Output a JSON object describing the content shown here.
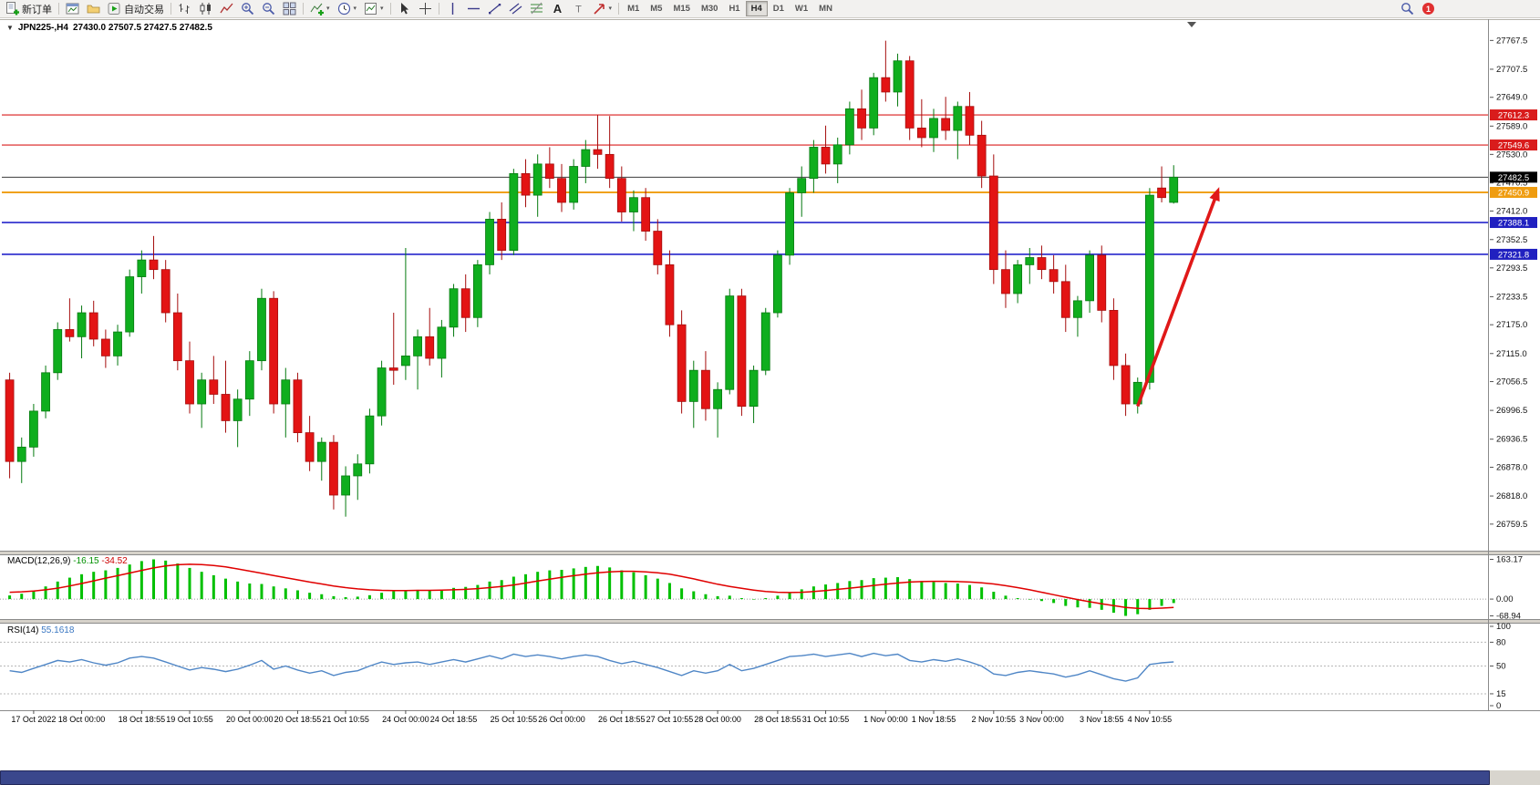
{
  "colors": {
    "up": "#0fae1e",
    "up_dark": "#067a10",
    "down": "#e31414",
    "down_dark": "#a50d0d",
    "macd_hist": "#00c000",
    "macd_signal": "#e00000",
    "rsi_line": "#4f86c6",
    "line_red": "#d91c1c",
    "line_blue": "#2626cc",
    "line_orange": "#f0a11c",
    "scrollbar": "#3a478c",
    "notification": "#e03030"
  },
  "toolbar": {
    "new_order_label": "新订单",
    "autotrading_label": "自动交易",
    "timeframes": [
      "M1",
      "M5",
      "M15",
      "M30",
      "H1",
      "H4",
      "D1",
      "W1",
      "MN"
    ],
    "active_timeframe": "H4",
    "notification_count": "1"
  },
  "chart": {
    "symbol_period": "JPN225-,H4",
    "ohlc": "27430.0 27507.5 27427.5 27482.5"
  },
  "indicators": {
    "macd": {
      "name": "MACD(12,26,9)",
      "value_main": "-16.15",
      "value_signal": "-34.52"
    },
    "rsi": {
      "name": "RSI(14)",
      "value": "55.1618"
    }
  },
  "chart_data": {
    "type": "candlestick",
    "symbol": "JPN225-",
    "timeframe": "H4",
    "current_bar": {
      "open": 27430.0,
      "high": 27507.5,
      "low": 27427.5,
      "close": 27482.5
    },
    "y_range": [
      26706,
      27810
    ],
    "y_ticks": [
      27767.5,
      27707.5,
      27649.0,
      27589.0,
      27530.0,
      27470.5,
      27412.0,
      27352.5,
      27293.5,
      27233.5,
      27175.0,
      27115.0,
      27056.5,
      26996.5,
      26936.5,
      26878.0,
      26818.0,
      26759.5
    ],
    "hlines": [
      {
        "price": 27612.3,
        "color": "#d91c1c",
        "width": 1.2,
        "label": "27612.3",
        "tag": "#d91c1c"
      },
      {
        "price": 27549.6,
        "color": "#d91c1c",
        "width": 1.2,
        "label": "27549.6",
        "tag": "#d91c1c"
      },
      {
        "price": 27482.5,
        "color": "#3c3c3c",
        "width": 1,
        "label": "27482.5",
        "tag": "#000000"
      },
      {
        "price": 27450.9,
        "color": "#f0a11c",
        "width": 2,
        "label": "27450.9",
        "tag": "#ef9c10"
      },
      {
        "price": 27388.1,
        "color": "#2626cc",
        "width": 1.6,
        "label": "27388.1",
        "tag": "#2020c0"
      },
      {
        "price": 27321.8,
        "color": "#2626cc",
        "width": 1.6,
        "label": "27321.8",
        "tag": "#2020c0"
      }
    ],
    "candles": [
      [
        27060,
        27075,
        26855,
        26890
      ],
      [
        26890,
        26940,
        26845,
        26920
      ],
      [
        26920,
        27010,
        26900,
        26995
      ],
      [
        26995,
        27090,
        26980,
        27075
      ],
      [
        27075,
        27180,
        27060,
        27165
      ],
      [
        27165,
        27230,
        27140,
        27150
      ],
      [
        27150,
        27215,
        27105,
        27200
      ],
      [
        27200,
        27225,
        27130,
        27145
      ],
      [
        27145,
        27165,
        27085,
        27110
      ],
      [
        27110,
        27175,
        27090,
        27160
      ],
      [
        27160,
        27290,
        27150,
        27275
      ],
      [
        27275,
        27330,
        27240,
        27310
      ],
      [
        27310,
        27360,
        27270,
        27290
      ],
      [
        27290,
        27310,
        27180,
        27200
      ],
      [
        27200,
        27240,
        27080,
        27100
      ],
      [
        27100,
        27140,
        26990,
        27010
      ],
      [
        27010,
        27075,
        26960,
        27060
      ],
      [
        27060,
        27110,
        27010,
        27030
      ],
      [
        27030,
        27100,
        26950,
        26975
      ],
      [
        26975,
        27040,
        26920,
        27020
      ],
      [
        27020,
        27120,
        26985,
        27100
      ],
      [
        27100,
        27250,
        27080,
        27230
      ],
      [
        27230,
        27245,
        26990,
        27010
      ],
      [
        27010,
        27085,
        26940,
        27060
      ],
      [
        27060,
        27075,
        26930,
        26950
      ],
      [
        26950,
        26985,
        26870,
        26890
      ],
      [
        26890,
        26940,
        26850,
        26930
      ],
      [
        26930,
        26945,
        26790,
        26820
      ],
      [
        26820,
        26880,
        26775,
        26860
      ],
      [
        26860,
        26905,
        26810,
        26885
      ],
      [
        26885,
        27000,
        26865,
        26985
      ],
      [
        26985,
        27100,
        26965,
        27085
      ],
      [
        27085,
        27200,
        27050,
        27080
      ],
      [
        27090,
        27335,
        27060,
        27110
      ],
      [
        27110,
        27165,
        27040,
        27150
      ],
      [
        27150,
        27210,
        27090,
        27105
      ],
      [
        27105,
        27185,
        27065,
        27170
      ],
      [
        27170,
        27260,
        27150,
        27250
      ],
      [
        27250,
        27280,
        27160,
        27190
      ],
      [
        27190,
        27310,
        27170,
        27300
      ],
      [
        27300,
        27410,
        27280,
        27395
      ],
      [
        27395,
        27430,
        27310,
        27330
      ],
      [
        27330,
        27500,
        27320,
        27490
      ],
      [
        27490,
        27520,
        27420,
        27445
      ],
      [
        27445,
        27530,
        27400,
        27510
      ],
      [
        27510,
        27545,
        27460,
        27480
      ],
      [
        27480,
        27510,
        27410,
        27430
      ],
      [
        27430,
        27520,
        27415,
        27505
      ],
      [
        27505,
        27560,
        27470,
        27540
      ],
      [
        27540,
        27612,
        27500,
        27530
      ],
      [
        27530,
        27610,
        27460,
        27480
      ],
      [
        27480,
        27505,
        27390,
        27410
      ],
      [
        27410,
        27455,
        27370,
        27440
      ],
      [
        27440,
        27460,
        27350,
        27370
      ],
      [
        27370,
        27395,
        27280,
        27300
      ],
      [
        27300,
        27330,
        27150,
        27175
      ],
      [
        27175,
        27205,
        26990,
        27015
      ],
      [
        27015,
        27100,
        26960,
        27080
      ],
      [
        27080,
        27120,
        26975,
        27000
      ],
      [
        27000,
        27055,
        26940,
        27040
      ],
      [
        27040,
        27250,
        27030,
        27235
      ],
      [
        27235,
        27250,
        26985,
        27005
      ],
      [
        27005,
        27090,
        26970,
        27080
      ],
      [
        27080,
        27210,
        27070,
        27200
      ],
      [
        27200,
        27330,
        27190,
        27320
      ],
      [
        27320,
        27460,
        27300,
        27450
      ],
      [
        27450,
        27505,
        27400,
        27480
      ],
      [
        27480,
        27560,
        27450,
        27545
      ],
      [
        27545,
        27590,
        27490,
        27510
      ],
      [
        27510,
        27565,
        27470,
        27550
      ],
      [
        27550,
        27640,
        27530,
        27625
      ],
      [
        27625,
        27665,
        27560,
        27585
      ],
      [
        27585,
        27700,
        27570,
        27690
      ],
      [
        27690,
        27767,
        27640,
        27660
      ],
      [
        27660,
        27740,
        27630,
        27725
      ],
      [
        27725,
        27735,
        27560,
        27585
      ],
      [
        27585,
        27645,
        27545,
        27565
      ],
      [
        27565,
        27625,
        27535,
        27605
      ],
      [
        27605,
        27650,
        27560,
        27580
      ],
      [
        27580,
        27640,
        27520,
        27630
      ],
      [
        27630,
        27660,
        27550,
        27570
      ],
      [
        27570,
        27600,
        27460,
        27485
      ],
      [
        27485,
        27530,
        27260,
        27290
      ],
      [
        27290,
        27330,
        27210,
        27240
      ],
      [
        27240,
        27310,
        27220,
        27300
      ],
      [
        27300,
        27335,
        27260,
        27315
      ],
      [
        27315,
        27340,
        27270,
        27290
      ],
      [
        27290,
        27320,
        27240,
        27265
      ],
      [
        27265,
        27300,
        27160,
        27190
      ],
      [
        27190,
        27235,
        27150,
        27225
      ],
      [
        27225,
        27330,
        27200,
        27320
      ],
      [
        27320,
        27340,
        27180,
        27205
      ],
      [
        27205,
        27230,
        27060,
        27090
      ],
      [
        27090,
        27115,
        26985,
        27010
      ],
      [
        27010,
        27065,
        26990,
        27055
      ],
      [
        27055,
        27460,
        27040,
        27445
      ],
      [
        27460,
        27505,
        27430,
        27440
      ],
      [
        27430,
        27507.5,
        27427.5,
        27482.5
      ]
    ],
    "x_labels": [
      {
        "i": 2,
        "t": "17 Oct 2022"
      },
      {
        "i": 6,
        "t": "18 Oct 00:00"
      },
      {
        "i": 11,
        "t": "18 Oct 18:55"
      },
      {
        "i": 15,
        "t": "19 Oct 10:55"
      },
      {
        "i": 20,
        "t": "20 Oct 00:00"
      },
      {
        "i": 24,
        "t": "20 Oct 18:55"
      },
      {
        "i": 28,
        "t": "21 Oct 10:55"
      },
      {
        "i": 33,
        "t": "24 Oct 00:00"
      },
      {
        "i": 37,
        "t": "24 Oct 18:55"
      },
      {
        "i": 42,
        "t": "25 Oct 10:55"
      },
      {
        "i": 46,
        "t": "26 Oct 00:00"
      },
      {
        "i": 51,
        "t": "26 Oct 18:55"
      },
      {
        "i": 55,
        "t": "27 Oct 10:55"
      },
      {
        "i": 59,
        "t": "28 Oct 00:00"
      },
      {
        "i": 64,
        "t": "28 Oct 18:55"
      },
      {
        "i": 68,
        "t": "31 Oct 10:55"
      },
      {
        "i": 73,
        "t": "1 Nov 00:00"
      },
      {
        "i": 77,
        "t": "1 Nov 18:55"
      },
      {
        "i": 82,
        "t": "2 Nov 10:55"
      },
      {
        "i": 86,
        "t": "3 Nov 00:00"
      },
      {
        "i": 91,
        "t": "3 Nov 18:55"
      },
      {
        "i": 95,
        "t": "4 Nov 10:55"
      }
    ],
    "arrow": {
      "from_bar": 94.0,
      "from_price": 27005,
      "to_bar": 100.8,
      "to_price": 27462,
      "color": "#e01818"
    },
    "macd": {
      "histogram": [
        15,
        22,
        35,
        52,
        72,
        88,
        102,
        112,
        118,
        128,
        142,
        156,
        163.17,
        158,
        146,
        128,
        112,
        98,
        84,
        72,
        64,
        62,
        52,
        44,
        36,
        26,
        20,
        12,
        8,
        10,
        16,
        26,
        32,
        36,
        38,
        36,
        38,
        46,
        50,
        58,
        72,
        78,
        92,
        102,
        112,
        118,
        120,
        126,
        132,
        136,
        130,
        118,
        110,
        98,
        84,
        66,
        44,
        32,
        20,
        12,
        14,
        4,
        -2,
        4,
        14,
        28,
        40,
        52,
        60,
        66,
        74,
        78,
        86,
        88,
        90,
        82,
        74,
        70,
        66,
        64,
        58,
        48,
        30,
        14,
        4,
        -2,
        -8,
        -16,
        -28,
        -34,
        -36,
        -44,
        -56,
        -68.94,
        -62,
        -44,
        -28,
        -16.15
      ],
      "signal": [
        28,
        30,
        33,
        38,
        45,
        54,
        64,
        75,
        86,
        96,
        107,
        118,
        128,
        136,
        141,
        143,
        142,
        138,
        132,
        124,
        115,
        106,
        97,
        88,
        79,
        70,
        62,
        54,
        47,
        42,
        38,
        36,
        35,
        35,
        36,
        36,
        37,
        38,
        40,
        43,
        47,
        52,
        58,
        66,
        74,
        82,
        89,
        96,
        102,
        108,
        112,
        114,
        114,
        112,
        108,
        102,
        93,
        83,
        72,
        61,
        52,
        44,
        37,
        31,
        28,
        27,
        28,
        31,
        35,
        40,
        45,
        50,
        56,
        61,
        66,
        70,
        72,
        73,
        73,
        72,
        70,
        67,
        62,
        55,
        47,
        38,
        28,
        18,
        8,
        -2,
        -11,
        -19,
        -27,
        -34,
        -38,
        -39,
        -37,
        -34.52
      ],
      "ticks": [
        {
          "v": 163.17,
          "t": "163.17"
        },
        {
          "v": 0,
          "t": "0.00"
        },
        {
          "v": -68.94,
          "t": "-68.94"
        }
      ],
      "range": [
        -82,
        180
      ]
    },
    "rsi": {
      "values": [
        44,
        42,
        47,
        52,
        57,
        55,
        58,
        54,
        51,
        54,
        60,
        62,
        60,
        55,
        50,
        45,
        48,
        46,
        43,
        46,
        51,
        57,
        46,
        50,
        45,
        41,
        44,
        38,
        42,
        44,
        50,
        55,
        52,
        54,
        55,
        52,
        55,
        58,
        55,
        59,
        63,
        59,
        65,
        62,
        64,
        62,
        59,
        62,
        64,
        62,
        57,
        53,
        56,
        52,
        48,
        43,
        38,
        44,
        41,
        44,
        52,
        44,
        47,
        52,
        57,
        62,
        63,
        65,
        62,
        64,
        66,
        62,
        66,
        63,
        65,
        57,
        55,
        58,
        56,
        59,
        55,
        50,
        40,
        38,
        42,
        44,
        42,
        40,
        36,
        39,
        44,
        39,
        34,
        31,
        35,
        52,
        54,
        55.16
      ],
      "levels": [
        80,
        50,
        15
      ],
      "ticks": [
        {
          "v": 100,
          "t": "100"
        },
        {
          "v": 80,
          "t": "80"
        },
        {
          "v": 50,
          "t": "50"
        },
        {
          "v": 15,
          "t": "15"
        },
        {
          "v": 0,
          "t": "0"
        }
      ]
    }
  }
}
